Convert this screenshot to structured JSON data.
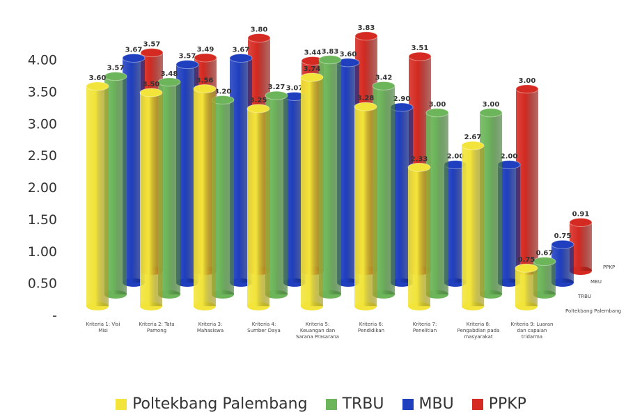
{
  "chart_data": {
    "type": "bar3d",
    "categories": [
      "Kriteria 1: Visi Misi",
      "Kriteria 2: Tata Pamong",
      "Kriteria 3: Mahasiswa",
      "Kriteria 4: Sumber Daya",
      "Kriteria 5: Keuangan dan Sarana Prasarana",
      "Kriteria 6: Pendidikan",
      "Kriteria 7: Penelitian",
      "Kriteria 8: Pengabdian pada masyarakat",
      "Kriteria 9: Luaran dan capaian tridarma"
    ],
    "series": [
      {
        "name": "Poltekbang Palembang",
        "color": "#f2e43a",
        "values": [
          3.6,
          3.5,
          3.56,
          3.25,
          3.74,
          3.28,
          2.33,
          2.67,
          0.75
        ],
        "value_labels": [
          "3.60",
          "3.50",
          "3.56",
          "3.25",
          "3.74",
          "3.28",
          "2.33",
          "2.67",
          "0.75"
        ]
      },
      {
        "name": "TRBU",
        "color": "#6db55a",
        "values": [
          3.57,
          3.48,
          3.2,
          3.27,
          3.83,
          3.42,
          3.0,
          3.0,
          0.67
        ],
        "value_labels": [
          "3.57",
          "3.48",
          "3.20",
          "3.27",
          "3.83",
          "3.42",
          "3.00",
          "3.00",
          "0.67"
        ]
      },
      {
        "name": "MBU",
        "color": "#1f3fbf",
        "values": [
          3.67,
          3.57,
          3.67,
          3.07,
          3.6,
          2.9,
          2.0,
          2.0,
          0.75
        ],
        "value_labels": [
          "3.67",
          "3.57",
          "3.67",
          "3.07",
          "3.60",
          "2.90",
          "2.00",
          "2.00",
          "0.75"
        ]
      },
      {
        "name": "PPKP",
        "color": "#d42a22",
        "values": [
          3.57,
          3.49,
          3.8,
          3.44,
          3.83,
          3.51,
          null,
          3.0,
          0.91
        ],
        "value_labels": [
          "3.57",
          "3.49",
          "3.80",
          "3.44",
          "3.83",
          "3.51",
          null,
          "3.00",
          "0.91"
        ]
      }
    ],
    "ylim": [
      0,
      4.4
    ],
    "yticks": [
      {
        "value": 0,
        "label": "-"
      },
      {
        "value": 0.5,
        "label": "0.50"
      },
      {
        "value": 1,
        "label": "1.00"
      },
      {
        "value": 1.5,
        "label": "1.50"
      },
      {
        "value": 2,
        "label": "2.00"
      },
      {
        "value": 2.5,
        "label": "2.50"
      },
      {
        "value": 3,
        "label": "3.00"
      },
      {
        "value": 3.5,
        "label": "3.50"
      },
      {
        "value": 4,
        "label": "4.00"
      }
    ],
    "legend": "bottom"
  }
}
